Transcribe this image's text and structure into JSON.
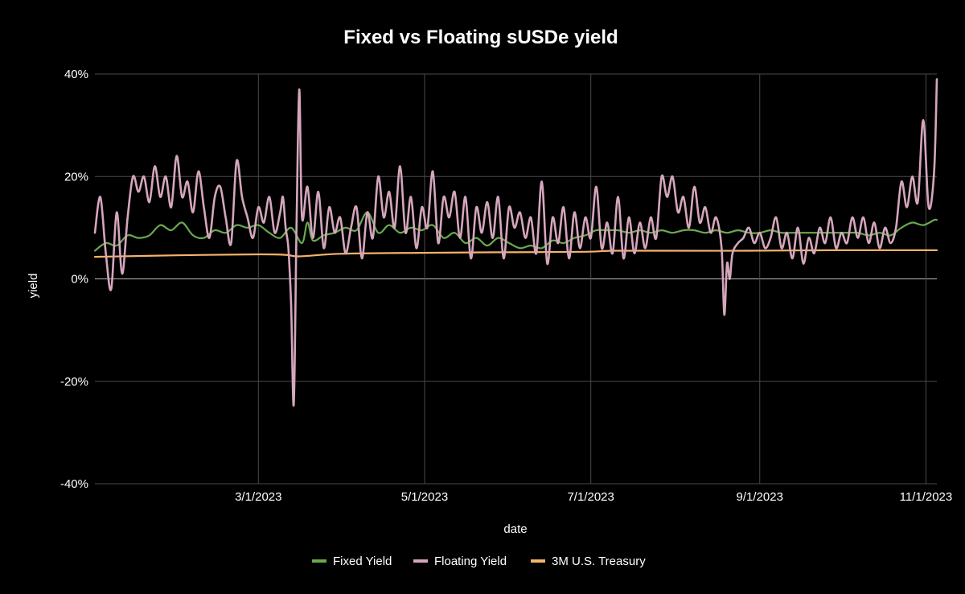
{
  "chart_data": {
    "type": "line",
    "title": "Fixed vs Floating sUSDe yield",
    "xlabel": "date",
    "ylabel": "yield",
    "x_ticks": [
      "3/1/2023",
      "5/1/2023",
      "7/1/2023",
      "9/1/2023",
      "11/1/2023"
    ],
    "y_ticks": [
      "40%",
      "20%",
      "0%",
      "-20%",
      "-40%"
    ],
    "ylim": [
      -40,
      40
    ],
    "x_range_days": [
      0,
      309
    ],
    "x_tick_days": [
      60,
      121,
      182,
      244,
      305
    ],
    "y_tick_values": [
      40,
      20,
      0,
      -20,
      -40
    ],
    "grid": true,
    "legend_position": "bottom-center",
    "series": [
      {
        "name": "Fixed Yield",
        "color": "#6aa84f",
        "unit": "%",
        "x_days": [
          0,
          4,
          8,
          12,
          16,
          20,
          24,
          28,
          32,
          36,
          40,
          44,
          48,
          52,
          56,
          60,
          64,
          68,
          72,
          76,
          78,
          80,
          84,
          88,
          92,
          96,
          100,
          104,
          108,
          112,
          116,
          120,
          124,
          128,
          132,
          136,
          140,
          144,
          148,
          152,
          156,
          160,
          164,
          168,
          172,
          176,
          180,
          184,
          188,
          192,
          196,
          200,
          204,
          208,
          212,
          216,
          220,
          224,
          228,
          232,
          236,
          240,
          244,
          248,
          252,
          256,
          260,
          264,
          268,
          272,
          276,
          280,
          284,
          288,
          292,
          296,
          300,
          304,
          308,
          309
        ],
        "values": [
          5.5,
          7.0,
          6.5,
          8.5,
          8.0,
          8.5,
          10.5,
          9.5,
          11.0,
          8.5,
          8.0,
          9.5,
          9.0,
          10.5,
          10.0,
          10.5,
          9.0,
          8.0,
          10.0,
          7.0,
          11.0,
          7.5,
          8.5,
          9.0,
          10.0,
          9.5,
          13.0,
          9.0,
          10.5,
          9.0,
          10.0,
          9.5,
          10.5,
          8.0,
          9.0,
          7.0,
          8.0,
          6.5,
          8.0,
          7.0,
          6.0,
          6.5,
          6.0,
          7.5,
          7.0,
          8.0,
          8.5,
          9.5,
          9.5,
          9.5,
          9.0,
          9.5,
          9.0,
          9.5,
          9.0,
          9.5,
          9.5,
          9.0,
          9.5,
          9.0,
          9.5,
          9.0,
          9.0,
          9.5,
          9.0,
          9.0,
          9.0,
          9.0,
          9.0,
          9.0,
          9.0,
          9.0,
          8.5,
          9.0,
          8.5,
          10.0,
          11.0,
          10.5,
          11.5,
          11.5
        ]
      },
      {
        "name": "Floating Yield",
        "color": "#d5a6bd",
        "unit": "%",
        "x_days": [
          0,
          2,
          4,
          6,
          8,
          10,
          12,
          14,
          16,
          18,
          20,
          22,
          24,
          26,
          28,
          30,
          32,
          34,
          36,
          38,
          40,
          42,
          44,
          46,
          48,
          50,
          52,
          54,
          56,
          58,
          60,
          62,
          64,
          66,
          68,
          69,
          70,
          71,
          72,
          73,
          74,
          75,
          76,
          78,
          80,
          82,
          84,
          86,
          88,
          90,
          92,
          94,
          96,
          98,
          100,
          102,
          104,
          106,
          108,
          110,
          112,
          114,
          116,
          118,
          120,
          122,
          124,
          126,
          128,
          130,
          132,
          134,
          136,
          138,
          140,
          142,
          144,
          146,
          148,
          150,
          152,
          154,
          156,
          158,
          160,
          162,
          164,
          166,
          168,
          170,
          172,
          174,
          176,
          178,
          180,
          182,
          184,
          186,
          188,
          190,
          192,
          194,
          196,
          198,
          200,
          202,
          204,
          206,
          208,
          210,
          212,
          214,
          216,
          218,
          220,
          222,
          224,
          226,
          228,
          230,
          231,
          232,
          233,
          234,
          236,
          238,
          240,
          242,
          244,
          246,
          248,
          250,
          252,
          254,
          256,
          258,
          260,
          262,
          264,
          266,
          268,
          270,
          272,
          274,
          276,
          278,
          280,
          282,
          284,
          286,
          288,
          290,
          292,
          294,
          296,
          298,
          300,
          302,
          304,
          306,
          308,
          309
        ],
        "values": [
          9.0,
          16.0,
          5.0,
          -2.0,
          13.0,
          1.0,
          12.0,
          20.0,
          17.0,
          20.0,
          15.0,
          22.0,
          16.0,
          20.0,
          14.0,
          24.0,
          16.0,
          19.0,
          13.0,
          21.0,
          14.0,
          8.0,
          16.0,
          18.0,
          12.0,
          7.0,
          23.0,
          16.0,
          12.0,
          8.0,
          14.0,
          11.0,
          16.0,
          9.0,
          13.0,
          16.0,
          10.0,
          6.0,
          -5.0,
          -24.5,
          10.0,
          37.0,
          12.0,
          18.0,
          8.0,
          17.0,
          6.0,
          14.0,
          9.0,
          12.0,
          5.0,
          10.0,
          14.0,
          4.0,
          13.0,
          8.0,
          20.0,
          12.0,
          17.0,
          10.0,
          22.0,
          9.0,
          16.0,
          6.0,
          14.0,
          10.0,
          21.0,
          7.0,
          16.0,
          12.0,
          17.0,
          8.0,
          16.0,
          4.0,
          14.0,
          9.0,
          15.0,
          8.0,
          16.0,
          4.0,
          14.0,
          10.0,
          13.0,
          8.0,
          12.0,
          5.0,
          19.0,
          3.0,
          12.0,
          7.0,
          14.0,
          4.0,
          13.0,
          6.0,
          12.0,
          8.0,
          18.0,
          6.0,
          11.0,
          5.0,
          16.0,
          4.0,
          12.0,
          5.0,
          11.0,
          6.0,
          12.0,
          8.0,
          20.0,
          16.0,
          20.0,
          13.0,
          16.0,
          10.0,
          18.0,
          11.0,
          14.0,
          9.0,
          12.0,
          6.0,
          -7.0,
          3.0,
          0.0,
          5.0,
          7.0,
          8.0,
          10.0,
          7.0,
          9.0,
          6.0,
          8.0,
          12.0,
          6.0,
          9.0,
          4.0,
          10.0,
          3.0,
          8.0,
          5.0,
          10.0,
          7.0,
          12.0,
          6.0,
          9.0,
          7.0,
          12.0,
          8.0,
          12.0,
          7.0,
          11.0,
          6.0,
          10.0,
          7.0,
          10.0,
          19.0,
          14.0,
          20.0,
          15.0,
          31.0,
          14.0,
          21.0,
          39.0
        ]
      },
      {
        "name": "3M U.S. Treasury",
        "color": "#f6b26b",
        "unit": "%",
        "x_days": [
          0,
          30,
          60,
          70,
          75,
          90,
          120,
          150,
          180,
          190,
          210,
          240,
          270,
          300,
          309
        ],
        "values": [
          4.3,
          4.6,
          4.8,
          4.7,
          4.4,
          4.9,
          5.1,
          5.2,
          5.3,
          5.5,
          5.5,
          5.5,
          5.6,
          5.6,
          5.6
        ]
      }
    ]
  }
}
